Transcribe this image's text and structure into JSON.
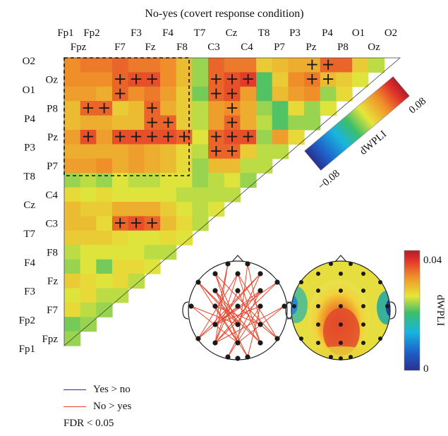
{
  "chart_data": {
    "type": "heatmap",
    "title": "No-yes (covert response condition)",
    "channels": [
      "Fp1",
      "Fpz",
      "Fp2",
      "F7",
      "F3",
      "Fz",
      "F4",
      "F8",
      "T7",
      "C3",
      "Cz",
      "C4",
      "T8",
      "P7",
      "P3",
      "Pz",
      "P4",
      "P8",
      "O1",
      "Oz",
      "O2"
    ],
    "colorbar_main": {
      "label": "dWPLI",
      "min": -0.08,
      "max": 0.08,
      "min_label": "−0.08",
      "max_label": "0.08"
    },
    "colorbar_topo": {
      "label": "dWPLI",
      "min": 0,
      "max": 0.04,
      "min_label": "0",
      "max_label": "0.04"
    },
    "rows": [
      {
        "channel": "O2",
        "values": [
          0.045,
          0.05,
          0.05,
          0.055,
          0.05,
          0.05,
          0.045,
          0.03,
          0.005,
          0.055,
          0.05,
          0.05,
          0.025,
          0.03,
          0.035,
          0.035,
          0.055,
          0.055,
          0.025,
          0.01
        ]
      },
      {
        "channel": "Oz",
        "values": [
          0.045,
          0.045,
          0.045,
          0.055,
          0.06,
          0.06,
          0.045,
          0.03,
          0.005,
          0.055,
          0.06,
          0.065,
          -0.005,
          0.025,
          0.045,
          0.05,
          0.03,
          0.025,
          0.015
        ]
      },
      {
        "channel": "O1",
        "values": [
          0.04,
          0.04,
          0.035,
          0.055,
          0.045,
          0.05,
          0.04,
          0.025,
          0.0,
          0.055,
          0.06,
          0.04,
          -0.005,
          0.03,
          0.04,
          0.045,
          0.005,
          0.02
        ]
      },
      {
        "channel": "P8",
        "values": [
          0.03,
          0.055,
          0.055,
          0.025,
          0.03,
          0.055,
          0.035,
          0.025,
          0.01,
          0.04,
          0.045,
          0.035,
          0.005,
          -0.005,
          0.02,
          0.005,
          0.015
        ]
      },
      {
        "channel": "P4",
        "values": [
          0.03,
          0.035,
          0.035,
          0.03,
          0.03,
          0.055,
          0.055,
          0.025,
          0.01,
          0.04,
          0.055,
          0.035,
          0.01,
          -0.005,
          0.005,
          0.005
        ]
      },
      {
        "channel": "Pz",
        "values": [
          0.04,
          0.06,
          0.04,
          0.06,
          0.06,
          0.06,
          0.06,
          0.055,
          0.015,
          0.055,
          0.06,
          0.06,
          0.005,
          0.04,
          0.02
        ]
      },
      {
        "channel": "P3",
        "values": [
          0.035,
          0.035,
          0.035,
          0.035,
          0.04,
          0.035,
          0.03,
          0.02,
          0.01,
          0.055,
          0.055,
          0.025,
          0.01,
          0.01
        ]
      },
      {
        "channel": "P7",
        "values": [
          0.04,
          0.04,
          0.045,
          0.035,
          0.04,
          0.035,
          0.03,
          0.02,
          0.005,
          0.03,
          0.03,
          0.01,
          0.01
        ]
      },
      {
        "channel": "T8",
        "values": [
          0.005,
          0.01,
          0.005,
          0.015,
          0.01,
          0.01,
          0.015,
          0.015,
          0.005,
          0.01,
          0.015,
          0.005
        ]
      },
      {
        "channel": "C4",
        "values": [
          0.02,
          0.015,
          0.02,
          0.015,
          0.015,
          0.015,
          0.015,
          0.01,
          0.01,
          0.01,
          0.01
        ]
      },
      {
        "channel": "Cz",
        "values": [
          0.03,
          0.025,
          0.025,
          0.035,
          0.035,
          0.035,
          0.025,
          0.015,
          0.01,
          0.015
        ]
      },
      {
        "channel": "C3",
        "values": [
          0.03,
          0.03,
          0.02,
          0.055,
          0.06,
          0.055,
          0.03,
          0.02,
          0.01
        ]
      },
      {
        "channel": "T7",
        "values": [
          0.025,
          0.025,
          0.025,
          0.02,
          0.015,
          0.015,
          0.02,
          0.015
        ]
      },
      {
        "channel": "F8",
        "values": [
          0.01,
          0.015,
          0.015,
          0.015,
          0.015,
          0.01,
          0.01
        ]
      },
      {
        "channel": "F4",
        "values": [
          0.005,
          0.015,
          0.0,
          0.02,
          0.02,
          0.015
        ]
      },
      {
        "channel": "Fz",
        "values": [
          0.025,
          0.02,
          0.015,
          0.02,
          0.01
        ]
      },
      {
        "channel": "F3",
        "values": [
          0.015,
          0.02,
          0.01,
          0.01
        ]
      },
      {
        "channel": "F7",
        "values": [
          0.02,
          0.01,
          0.005
        ]
      },
      {
        "channel": "Fp2",
        "values": [
          0.0,
          0.005
        ]
      },
      {
        "channel": "Fpz",
        "values": [
          0.005
        ]
      },
      {
        "channel": "Fp1",
        "values": []
      }
    ],
    "significant_cells": [
      [
        0,
        15
      ],
      [
        0,
        16
      ],
      [
        1,
        3
      ],
      [
        1,
        4
      ],
      [
        1,
        5
      ],
      [
        1,
        9
      ],
      [
        1,
        10
      ],
      [
        1,
        11
      ],
      [
        1,
        15
      ],
      [
        1,
        16
      ],
      [
        2,
        3
      ],
      [
        2,
        9
      ],
      [
        2,
        10
      ],
      [
        3,
        1
      ],
      [
        3,
        2
      ],
      [
        3,
        5
      ],
      [
        3,
        10
      ],
      [
        4,
        5
      ],
      [
        4,
        6
      ],
      [
        4,
        10
      ],
      [
        5,
        1
      ],
      [
        5,
        3
      ],
      [
        5,
        4
      ],
      [
        5,
        5
      ],
      [
        5,
        6
      ],
      [
        5,
        7
      ],
      [
        5,
        9
      ],
      [
        5,
        10
      ],
      [
        5,
        11
      ],
      [
        6,
        9
      ],
      [
        6,
        10
      ],
      [
        11,
        3
      ],
      [
        11,
        4
      ],
      [
        11,
        5
      ]
    ]
  },
  "legend": {
    "items": [
      {
        "label": "Yes > no",
        "color": "#2b2f8f"
      },
      {
        "label": "No > yes",
        "color": "#e8452c"
      }
    ],
    "note": "FDR < 0.05"
  },
  "colors": {
    "marker": "#1a1a1a",
    "network_line": "#e8452c",
    "box_dash": "#111111"
  }
}
